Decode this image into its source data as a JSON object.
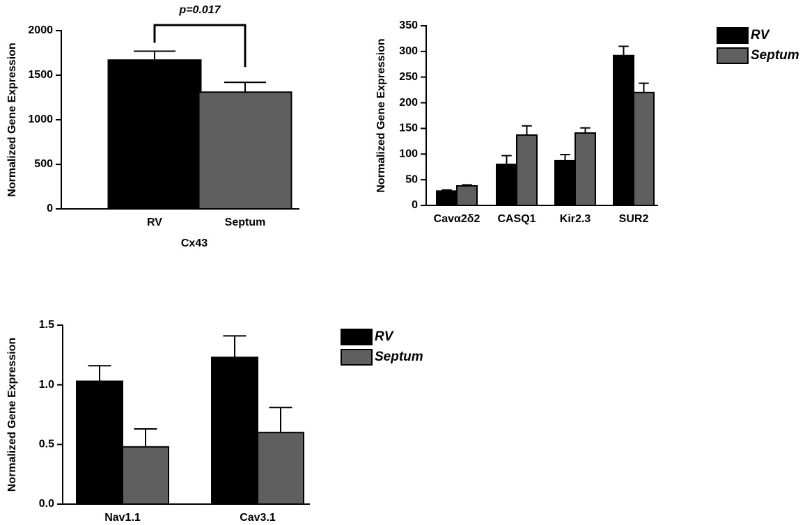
{
  "chart_data": [
    {
      "type": "bar",
      "y_label": "Normalized Gene Expression",
      "x_label": "Cx43",
      "annotation": "p=0.017",
      "categories": [
        "RV",
        "Septum"
      ],
      "values": [
        1670,
        1310
      ],
      "errors": [
        100,
        110
      ],
      "colors": [
        "#000000",
        "#5f5f5f"
      ],
      "ylim": [
        0,
        2000
      ],
      "yticks": [
        0,
        500,
        1000,
        1500,
        2000
      ]
    },
    {
      "type": "bar",
      "y_label": "Normalized Gene Expression",
      "categories": [
        "Cavα2δ2",
        "CASQ1",
        "Kir2.3",
        "SUR2"
      ],
      "series": [
        {
          "name": "RV",
          "color": "#000000",
          "values": [
            28,
            80,
            87,
            292
          ],
          "errors": [
            2,
            17,
            12,
            18
          ]
        },
        {
          "name": "Septum",
          "color": "#5f5f5f",
          "values": [
            38,
            137,
            141,
            220
          ],
          "errors": [
            2,
            18,
            10,
            18
          ]
        }
      ],
      "ylim": [
        0,
        350
      ],
      "yticks": [
        0,
        50,
        100,
        150,
        200,
        250,
        300,
        350
      ],
      "legend": "outside-right"
    },
    {
      "type": "bar",
      "y_label": "Normalized Gene Expression",
      "categories": [
        "Nav1.1",
        "Cav3.1"
      ],
      "series": [
        {
          "name": "RV",
          "color": "#000000",
          "values": [
            1.03,
            1.23
          ],
          "errors": [
            0.13,
            0.18
          ]
        },
        {
          "name": "Septum",
          "color": "#5f5f5f",
          "values": [
            0.48,
            0.6
          ],
          "errors": [
            0.15,
            0.21
          ]
        }
      ],
      "ylim": [
        0,
        1.5
      ],
      "yticks": [
        {
          "value": 0,
          "label": "0.0"
        },
        0.5,
        {
          "value": 1,
          "label": "1.0"
        },
        1.5
      ],
      "legend": "outside-right"
    }
  ]
}
